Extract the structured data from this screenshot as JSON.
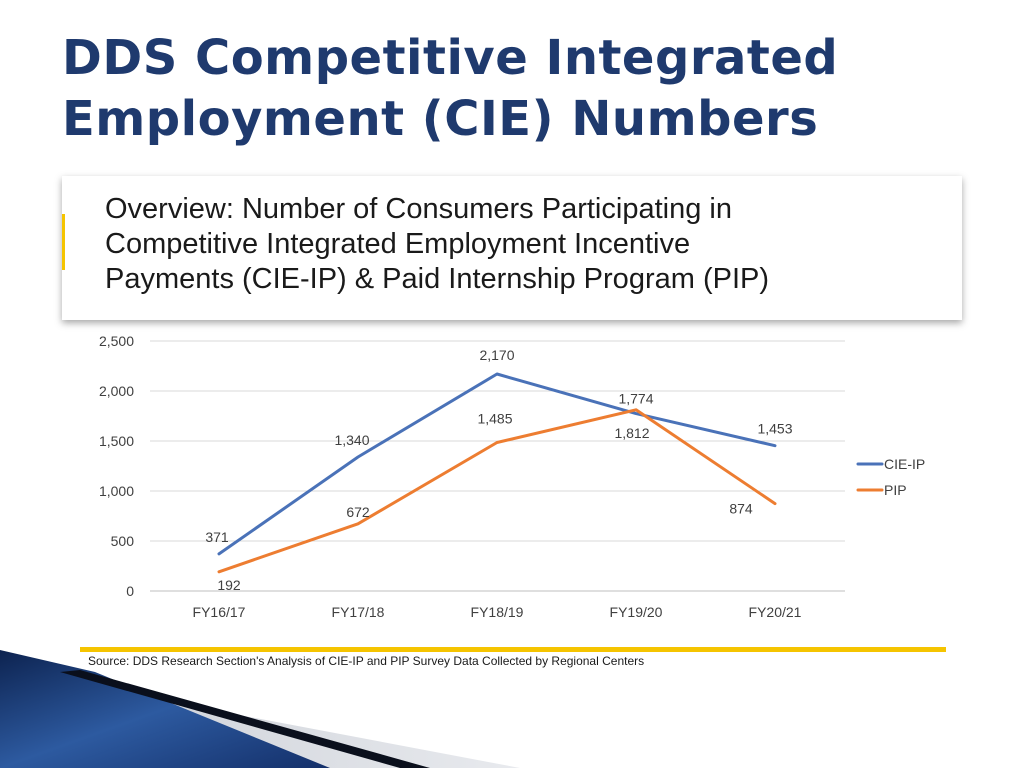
{
  "slide": {
    "title_line1": "DDS Competitive Integrated",
    "title_line2": "Employment (CIE) Numbers",
    "banner_line1": "Overview: Number of Consumers Participating in",
    "banner_line2": "Competitive Integrated Employment Incentive",
    "banner_line3": "Payments (CIE-IP) & Paid Internship Program (PIP)",
    "source": "Source: DDS Research Section's Analysis of CIE-IP and PIP Survey Data Collected by Regional Centers"
  },
  "chart_data": {
    "type": "line",
    "categories": [
      "FY16/17",
      "FY17/18",
      "FY18/19",
      "FY19/20",
      "FY20/21"
    ],
    "series": [
      {
        "name": "CIE-IP",
        "values": [
          371,
          1340,
          2170,
          1774,
          1453
        ],
        "color": "#4a72b8"
      },
      {
        "name": "PIP",
        "values": [
          192,
          672,
          1485,
          1812,
          874
        ],
        "color": "#ed7d31"
      }
    ],
    "y_ticks": [
      {
        "value": 0,
        "label": "0"
      },
      {
        "value": 500,
        "label": "500"
      },
      {
        "value": 1000,
        "label": "1,000"
      },
      {
        "value": 1500,
        "label": "1,500"
      },
      {
        "value": 2000,
        "label": "2,000"
      },
      {
        "value": 2500,
        "label": "2,500"
      }
    ],
    "data_labels": [
      [
        "371",
        "1,340",
        "2,170",
        "1,774",
        "1,453"
      ],
      [
        "192",
        "672",
        "1,485",
        "1,812",
        "874"
      ]
    ],
    "ylim": [
      0,
      2500
    ],
    "grid": true,
    "legend": "right"
  }
}
